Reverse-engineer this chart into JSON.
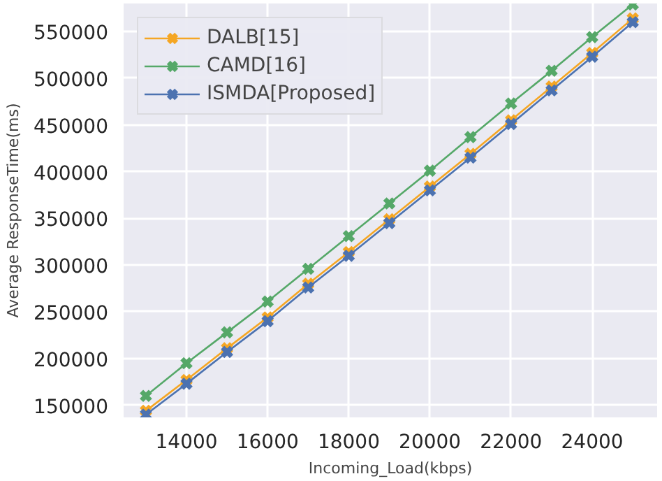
{
  "chart_data": {
    "type": "line",
    "xlabel": "Incoming_Load(kbps)",
    "ylabel": "Average ResponseTime(ms)",
    "x": [
      13000,
      14000,
      15000,
      16000,
      17000,
      18000,
      19000,
      20000,
      21000,
      22000,
      23000,
      24000,
      25000
    ],
    "series": [
      {
        "name": "DALB[15]",
        "color": "#f5a623",
        "values": [
          144000,
          177000,
          211000,
          244000,
          280000,
          314000,
          349000,
          384000,
          419000,
          455000,
          491000,
          527000,
          564000
        ]
      },
      {
        "name": "CAMD[16]",
        "color": "#55a868",
        "values": [
          160000,
          195000,
          228000,
          261000,
          296000,
          331000,
          366000,
          401000,
          437000,
          473000,
          508000,
          544000,
          579000
        ]
      },
      {
        "name": "ISMDA[Proposed]",
        "color": "#4c72b0",
        "values": [
          140000,
          173000,
          207000,
          240000,
          276000,
          310000,
          345000,
          380000,
          415000,
          451000,
          487000,
          523000,
          560000
        ]
      }
    ],
    "xlim": [
      12450,
      25600
    ],
    "ylim": [
      137000,
      580000
    ],
    "xticks": [
      14000,
      16000,
      18000,
      20000,
      22000,
      24000
    ],
    "yticks": [
      150000,
      200000,
      250000,
      300000,
      350000,
      400000,
      450000,
      500000,
      550000
    ],
    "grid": true,
    "legend": "top left",
    "marker": "cross",
    "line_style": "solid"
  }
}
